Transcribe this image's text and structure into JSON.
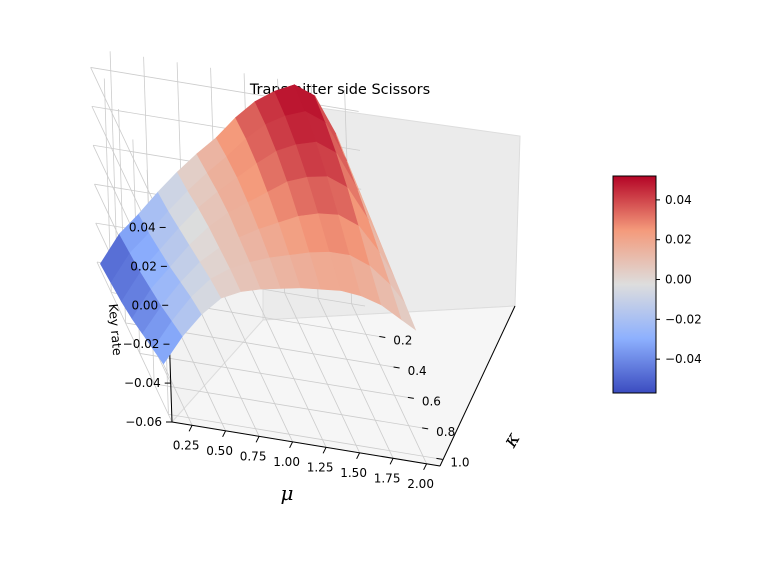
{
  "chart_data": {
    "type": "surface3d",
    "title": "Transmitter side Scissors",
    "xlabel": "μ",
    "ylabel": "κ",
    "zlabel": "Key rate",
    "xlim": [
      0.1,
      2.1
    ],
    "ylim": [
      0.0,
      1.05
    ],
    "zlim": [
      -0.06,
      0.05
    ],
    "x_ticks": [
      "0.25",
      "0.50",
      "0.75",
      "1.00",
      "1.25",
      "1.50",
      "1.75",
      "2.00"
    ],
    "y_ticks": [
      "0.2",
      "0.4",
      "0.6",
      "0.8",
      "1.0"
    ],
    "z_ticks": [
      "−0.06",
      "−0.04",
      "−0.02",
      "0.00",
      "0.02",
      "0.04"
    ],
    "colormap": "coolwarm",
    "colorbar": {
      "range": [
        -0.057,
        0.052
      ],
      "ticks": [
        "−0.04",
        "−0.02",
        "0.00",
        "0.02",
        "0.04"
      ]
    },
    "grid": true,
    "surface": {
      "mu": [
        0.1,
        0.25,
        0.4,
        0.55,
        0.7,
        0.85,
        1.0,
        1.15,
        1.3,
        1.45,
        1.6,
        1.75,
        1.9,
        2.0
      ],
      "kappa": [
        0.05,
        0.2,
        0.35,
        0.5,
        0.65,
        0.8,
        0.95
      ],
      "key_rate": [
        [
          -0.057,
          -0.04,
          -0.028,
          -0.015,
          -0.003,
          0.008,
          0.018,
          0.03,
          0.04,
          0.047,
          0.052,
          0.048,
          0.03,
          0.012
        ],
        [
          -0.055,
          -0.038,
          -0.026,
          -0.013,
          -0.001,
          0.01,
          0.02,
          0.031,
          0.04,
          0.046,
          0.05,
          0.046,
          0.028,
          0.011
        ],
        [
          -0.053,
          -0.036,
          -0.023,
          -0.01,
          0.002,
          0.012,
          0.021,
          0.03,
          0.038,
          0.043,
          0.046,
          0.042,
          0.025,
          0.009
        ],
        [
          -0.05,
          -0.033,
          -0.02,
          -0.007,
          0.004,
          0.013,
          0.02,
          0.027,
          0.034,
          0.038,
          0.04,
          0.036,
          0.021,
          0.007
        ],
        [
          -0.046,
          -0.03,
          -0.016,
          -0.004,
          0.005,
          0.012,
          0.018,
          0.023,
          0.028,
          0.031,
          0.032,
          0.028,
          0.016,
          0.005
        ],
        [
          -0.042,
          -0.026,
          -0.012,
          -0.001,
          0.006,
          0.011,
          0.015,
          0.018,
          0.021,
          0.023,
          0.023,
          0.019,
          0.011,
          0.003
        ],
        [
          -0.038,
          -0.022,
          -0.009,
          0.001,
          0.006,
          0.009,
          0.011,
          0.013,
          0.014,
          0.015,
          0.014,
          0.011,
          0.005,
          0.001
        ]
      ]
    }
  }
}
